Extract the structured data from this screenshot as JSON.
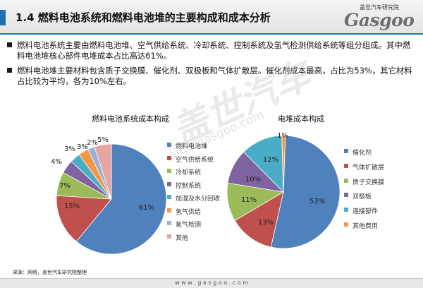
{
  "header": {
    "title": "1.4 燃料电池系统和燃料电池堆的主要构成和成本分析",
    "logo_cn": "盖世汽车研究院",
    "logo_en": "Gasgoo"
  },
  "bullets": [
    "燃料电池系统主要由燃料电池堆、空气供给系统、冷却系统、控制系统及氢气检测供给系统等组分组成。其中燃料电池堆核心部件电堆成本占比高达61%。",
    "燃料电池堆主要材料包含质子交换膜、催化剂、双极板和气体扩散层。催化剂成本最高，占比为53%，其它材料占比较为平均，各为10%左右。"
  ],
  "watermark": {
    "brand": "盖世汽车",
    "url": "auto.gasgoo.com"
  },
  "chart_data": [
    {
      "type": "pie",
      "title": "燃料电池系统成本构成",
      "labels": [
        "燃料电池堆",
        "空气供给系统",
        "冷却系统",
        "控制系统",
        "加湿及水分回收",
        "氢气供给",
        "氢气检测",
        "其他"
      ],
      "values": [
        61,
        15,
        7,
        4,
        3,
        3,
        2,
        5
      ],
      "value_labels": [
        "61%",
        "15%",
        "7%",
        "4%",
        "3%",
        "3%",
        "2%",
        "5%"
      ],
      "colors": [
        "#4f81bd",
        "#c0504d",
        "#9bbb59",
        "#8064a2",
        "#4bacc6",
        "#f79646",
        "#95b3d7",
        "#e6a5a3"
      ],
      "legend_position": "right"
    },
    {
      "type": "pie",
      "title": "电堆成本构成",
      "labels": [
        "催化剂",
        "气体扩散层",
        "质子交换膜",
        "双极板",
        "连接部件",
        "其他费用"
      ],
      "values": [
        53,
        13,
        11,
        10,
        12,
        1
      ],
      "value_labels": [
        "53%",
        "13%",
        "11%",
        "10%",
        "12%",
        "1%"
      ],
      "colors": [
        "#4f81bd",
        "#c0504d",
        "#9bbb59",
        "#8064a2",
        "#4bacc6",
        "#f79646"
      ],
      "legend_position": "right"
    }
  ],
  "source": "来源：网络，盖世汽车研究院整理",
  "footer": {
    "url": "w w w . g a s g o o . c o m"
  }
}
